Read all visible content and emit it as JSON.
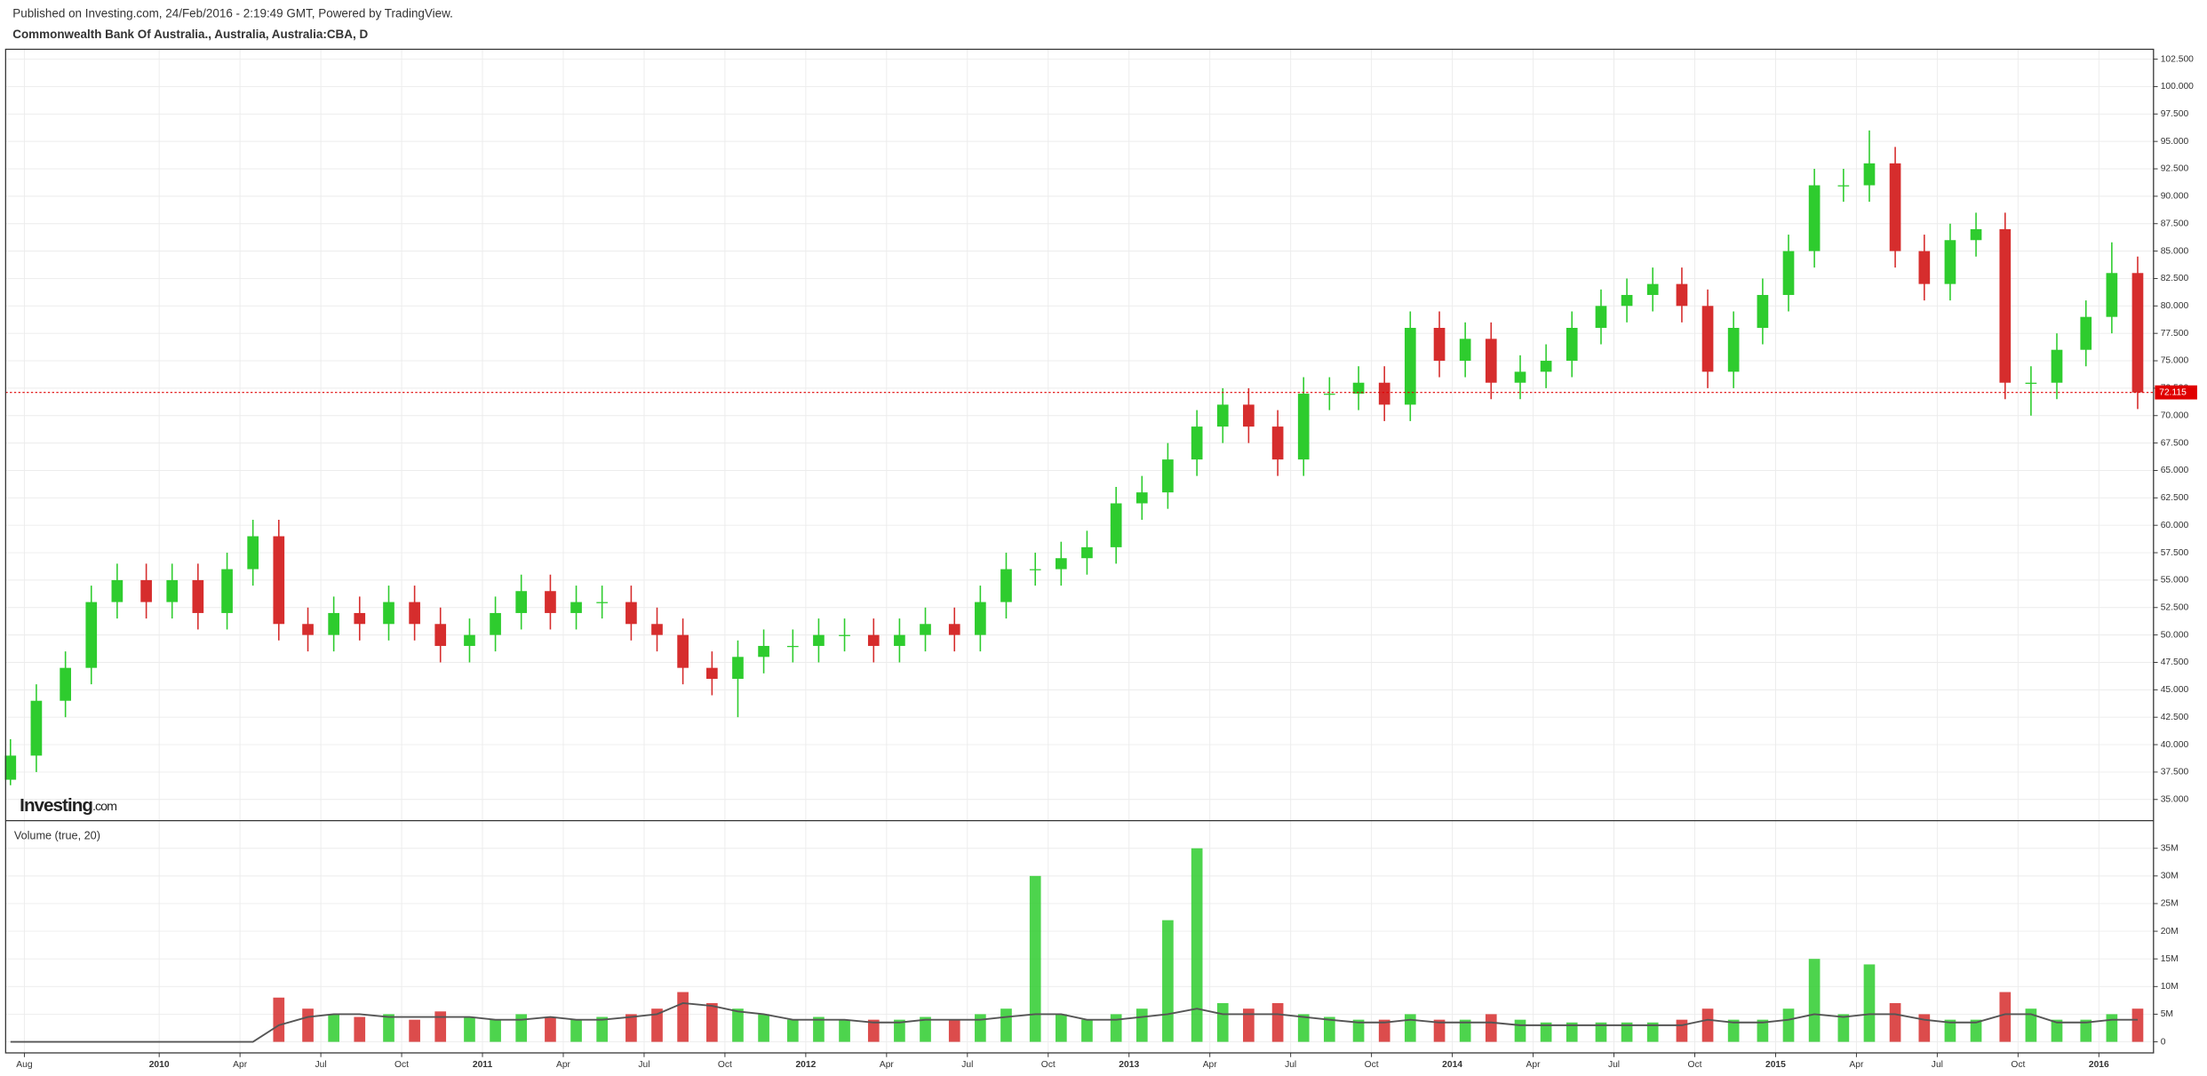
{
  "published": "Published on Investing.com, 24/Feb/2016 - 2:19:49 GMT, Powered by TradingView.",
  "watermark": {
    "brand": "Investing",
    "suffix": ".com"
  },
  "chart_data": [
    {
      "type": "candlestick",
      "title": "Commonwealth Bank Of Australia., Australia, Australia:CBA, D",
      "up_color": "#2ecc2e",
      "down_color": "#d62d2d",
      "grid": true,
      "last_price": 72.115,
      "last_price_color": "#e00000",
      "xlim": [
        2009.525,
        2016.169
      ],
      "xticks": [
        {
          "value": 2009.583,
          "label": "Aug"
        },
        {
          "value": 2010,
          "label": "2010"
        },
        {
          "value": 2010.25,
          "label": "Apr"
        },
        {
          "value": 2010.5,
          "label": "Jul"
        },
        {
          "value": 2010.75,
          "label": "Oct"
        },
        {
          "value": 2011,
          "label": "2011"
        },
        {
          "value": 2011.25,
          "label": "Apr"
        },
        {
          "value": 2011.5,
          "label": "Jul"
        },
        {
          "value": 2011.75,
          "label": "Oct"
        },
        {
          "value": 2012,
          "label": "2012"
        },
        {
          "value": 2012.25,
          "label": "Apr"
        },
        {
          "value": 2012.5,
          "label": "Jul"
        },
        {
          "value": 2012.75,
          "label": "Oct"
        },
        {
          "value": 2013,
          "label": "2013"
        },
        {
          "value": 2013.25,
          "label": "Apr"
        },
        {
          "value": 2013.5,
          "label": "Jul"
        },
        {
          "value": 2013.75,
          "label": "Oct"
        },
        {
          "value": 2014,
          "label": "2014"
        },
        {
          "value": 2014.25,
          "label": "Apr"
        },
        {
          "value": 2014.5,
          "label": "Jul"
        },
        {
          "value": 2014.75,
          "label": "Oct"
        },
        {
          "value": 2015,
          "label": "2015"
        },
        {
          "value": 2015.25,
          "label": "Apr"
        },
        {
          "value": 2015.5,
          "label": "Jul"
        },
        {
          "value": 2015.75,
          "label": "Oct"
        },
        {
          "value": 2016,
          "label": "2016"
        }
      ],
      "ylim": [
        33.07,
        103.4
      ],
      "yticks": [
        {
          "value": 35,
          "label": "35.000"
        },
        {
          "value": 37.5,
          "label": "37.500"
        },
        {
          "value": 40,
          "label": "40.000"
        },
        {
          "value": 42.5,
          "label": "42.500"
        },
        {
          "value": 45,
          "label": "45.000"
        },
        {
          "value": 47.5,
          "label": "47.500"
        },
        {
          "value": 50,
          "label": "50.000"
        },
        {
          "value": 52.5,
          "label": "52.500"
        },
        {
          "value": 55,
          "label": "55.000"
        },
        {
          "value": 57.5,
          "label": "57.500"
        },
        {
          "value": 60,
          "label": "60.000"
        },
        {
          "value": 62.5,
          "label": "62.500"
        },
        {
          "value": 65,
          "label": "65.000"
        },
        {
          "value": 67.5,
          "label": "67.500"
        },
        {
          "value": 70,
          "label": "70.000"
        },
        {
          "value": 72.5,
          "label": "72.500"
        },
        {
          "value": 75,
          "label": "75.000"
        },
        {
          "value": 77.5,
          "label": "77.500"
        },
        {
          "value": 80,
          "label": "80.000"
        },
        {
          "value": 82.5,
          "label": "82.500"
        },
        {
          "value": 85,
          "label": "85.000"
        },
        {
          "value": 87.5,
          "label": "87.500"
        },
        {
          "value": 90,
          "label": "90.000"
        },
        {
          "value": 92.5,
          "label": "92.500"
        },
        {
          "value": 95,
          "label": "95.000"
        },
        {
          "value": 97.5,
          "label": "97.500"
        },
        {
          "value": 100,
          "label": "100.000"
        },
        {
          "value": 102.5,
          "label": "102.500"
        }
      ],
      "x": [
        2009.54,
        2009.62,
        2009.71,
        2009.79,
        2009.87,
        2009.96,
        2010.04,
        2010.12,
        2010.21,
        2010.29,
        2010.37,
        2010.46,
        2010.54,
        2010.62,
        2010.71,
        2010.79,
        2010.87,
        2010.96,
        2011.04,
        2011.12,
        2011.21,
        2011.29,
        2011.37,
        2011.46,
        2011.54,
        2011.62,
        2011.71,
        2011.79,
        2011.87,
        2011.96,
        2012.04,
        2012.12,
        2012.21,
        2012.29,
        2012.37,
        2012.46,
        2012.54,
        2012.62,
        2012.71,
        2012.79,
        2012.87,
        2012.96,
        2013.04,
        2013.12,
        2013.21,
        2013.29,
        2013.37,
        2013.46,
        2013.54,
        2013.62,
        2013.71,
        2013.79,
        2013.87,
        2013.96,
        2014.04,
        2014.12,
        2014.21,
        2014.29,
        2014.37,
        2014.46,
        2014.54,
        2014.62,
        2014.71,
        2014.79,
        2014.87,
        2014.96,
        2015.04,
        2015.12,
        2015.21,
        2015.29,
        2015.37,
        2015.46,
        2015.54,
        2015.62,
        2015.71,
        2015.79,
        2015.87,
        2015.96,
        2016.04,
        2016.12
      ],
      "open": [
        36.8,
        39,
        44,
        47,
        53,
        55,
        53,
        55,
        52,
        56,
        59,
        51,
        50,
        52,
        51,
        53,
        51,
        49,
        50,
        52,
        54,
        52,
        53,
        53,
        51,
        50,
        47,
        46,
        48,
        49,
        49,
        50,
        50,
        49,
        50,
        51,
        50,
        53,
        56,
        56,
        57,
        58,
        62,
        63,
        66,
        69,
        71,
        69,
        66,
        72,
        72,
        73,
        71,
        78,
        75,
        77,
        73,
        74,
        75,
        78,
        80,
        81,
        82,
        80,
        74,
        78,
        81,
        85,
        91,
        91,
        93,
        85,
        82,
        86,
        87,
        73,
        73,
        76,
        79,
        83
      ],
      "high": [
        40.5,
        45.5,
        48.5,
        54.5,
        56.5,
        56.5,
        56.5,
        56.5,
        57.5,
        60.5,
        60.5,
        52.5,
        53.5,
        53.5,
        54.5,
        54.5,
        52.5,
        51.5,
        53.5,
        55.5,
        55.5,
        54.5,
        54.5,
        54.5,
        52.5,
        51.5,
        48.5,
        49.5,
        50.5,
        50.5,
        51.5,
        51.5,
        51.5,
        51.5,
        52.5,
        52.5,
        54.5,
        57.5,
        57.5,
        58.5,
        59.5,
        63.5,
        64.5,
        67.5,
        70.5,
        72.5,
        72.5,
        70.5,
        73.5,
        73.5,
        74.5,
        74.5,
        79.5,
        79.5,
        78.5,
        78.5,
        75.5,
        76.5,
        79.5,
        81.5,
        82.5,
        83.5,
        83.5,
        81.5,
        79.5,
        82.5,
        86.5,
        92.5,
        92.5,
        96,
        94.5,
        86.5,
        87.5,
        88.5,
        88.5,
        74.5,
        77.5,
        80.5,
        85.8,
        84.5
      ],
      "low": [
        36.3,
        37.5,
        42.5,
        45.5,
        51.5,
        51.5,
        51.5,
        50.5,
        50.5,
        54.5,
        49.5,
        48.5,
        48.5,
        49.5,
        49.5,
        49.5,
        47.5,
        47.5,
        48.5,
        50.5,
        50.5,
        50.5,
        51.5,
        49.5,
        48.5,
        45.5,
        44.5,
        42.5,
        46.5,
        47.5,
        47.5,
        48.5,
        47.5,
        47.5,
        48.5,
        48.5,
        48.5,
        51.5,
        54.5,
        54.5,
        55.5,
        56.5,
        60.5,
        61.5,
        64.5,
        67.5,
        67.5,
        64.5,
        64.5,
        70.5,
        70.5,
        69.5,
        69.5,
        73.5,
        73.5,
        71.5,
        71.5,
        72.5,
        73.5,
        76.5,
        78.5,
        79.5,
        78.5,
        72.5,
        72.5,
        76.5,
        79.5,
        83.5,
        89.5,
        89.5,
        83.5,
        80.5,
        80.5,
        84.5,
        71.5,
        70,
        71.5,
        74.5,
        77.5,
        70.6
      ],
      "close": [
        39,
        44,
        47,
        53,
        55,
        53,
        55,
        52,
        56,
        59,
        51,
        50,
        52,
        51,
        53,
        51,
        49,
        50,
        52,
        54,
        52,
        53,
        53,
        51,
        50,
        47,
        46,
        48,
        49,
        49,
        50,
        50,
        49,
        50,
        51,
        50,
        53,
        56,
        56,
        57,
        58,
        62,
        63,
        66,
        69,
        71,
        69,
        66,
        72,
        72,
        73,
        71,
        78,
        75,
        77,
        73,
        74,
        75,
        78,
        80,
        81,
        82,
        80,
        74,
        78,
        81,
        85,
        91,
        91,
        93,
        85,
        82,
        86,
        87,
        73,
        73,
        76,
        79,
        83,
        72.115
      ]
    },
    {
      "type": "bar",
      "title": "Volume (true, 20)",
      "ylim": [
        -2000000,
        40000000
      ],
      "yticks": [
        0,
        {
          "value": 5000000,
          "label": "5M"
        },
        {
          "value": 10000000,
          "label": "10M"
        },
        {
          "value": 15000000,
          "label": "15M"
        },
        {
          "value": 20000000,
          "label": "20M"
        },
        {
          "value": 25000000,
          "label": "25M"
        },
        {
          "value": 30000000,
          "label": "30M"
        },
        {
          "value": 35000000,
          "label": "35M"
        }
      ],
      "series": [
        {
          "values": [
            0,
            0,
            0,
            0,
            0,
            0,
            0,
            0,
            0,
            0,
            8000000,
            6000000,
            5000000,
            4500000,
            5000000,
            4000000,
            5500000,
            4500000,
            4000000,
            5000000,
            4500000,
            4000000,
            4500000,
            5000000,
            6000000,
            9000000,
            7000000,
            6000000,
            5000000,
            4000000,
            4500000,
            4000000,
            4000000,
            4000000,
            4500000,
            4000000,
            5000000,
            6000000,
            30000000,
            5000000,
            4000000,
            5000000,
            6000000,
            22000000,
            35000000,
            7000000,
            6000000,
            7000000,
            5000000,
            4500000,
            4000000,
            4000000,
            5000000,
            4000000,
            4000000,
            5000000,
            4000000,
            3500000,
            3500000,
            3500000,
            3500000,
            3500000,
            4000000,
            6000000,
            4000000,
            4000000,
            6000000,
            15000000,
            5000000,
            14000000,
            7000000,
            5000000,
            4000000,
            4000000,
            9000000,
            6000000,
            4000000,
            4000000,
            5000000,
            6000000
          ]
        },
        {
          "type": "line",
          "color": "#555555",
          "values": [
            0,
            0,
            0,
            0,
            0,
            0,
            0,
            0,
            0,
            0,
            3000000,
            4500000,
            5000000,
            5000000,
            4500000,
            4500000,
            4500000,
            4500000,
            4000000,
            4000000,
            4500000,
            4000000,
            4000000,
            4500000,
            5000000,
            7000000,
            6500000,
            5500000,
            5000000,
            4000000,
            4000000,
            4000000,
            3500000,
            3500000,
            4000000,
            4000000,
            4000000,
            4500000,
            5000000,
            5000000,
            4000000,
            4000000,
            4500000,
            5000000,
            6000000,
            5000000,
            5000000,
            5000000,
            4500000,
            4000000,
            3500000,
            3500000,
            4000000,
            3500000,
            3500000,
            3500000,
            3000000,
            3000000,
            3000000,
            3000000,
            3000000,
            3000000,
            3000000,
            4000000,
            3500000,
            3500000,
            4000000,
            5000000,
            4500000,
            5000000,
            5000000,
            4000000,
            3500000,
            3500000,
            5000000,
            5000000,
            3500000,
            3500000,
            4000000,
            4000000
          ]
        }
      ]
    }
  ]
}
